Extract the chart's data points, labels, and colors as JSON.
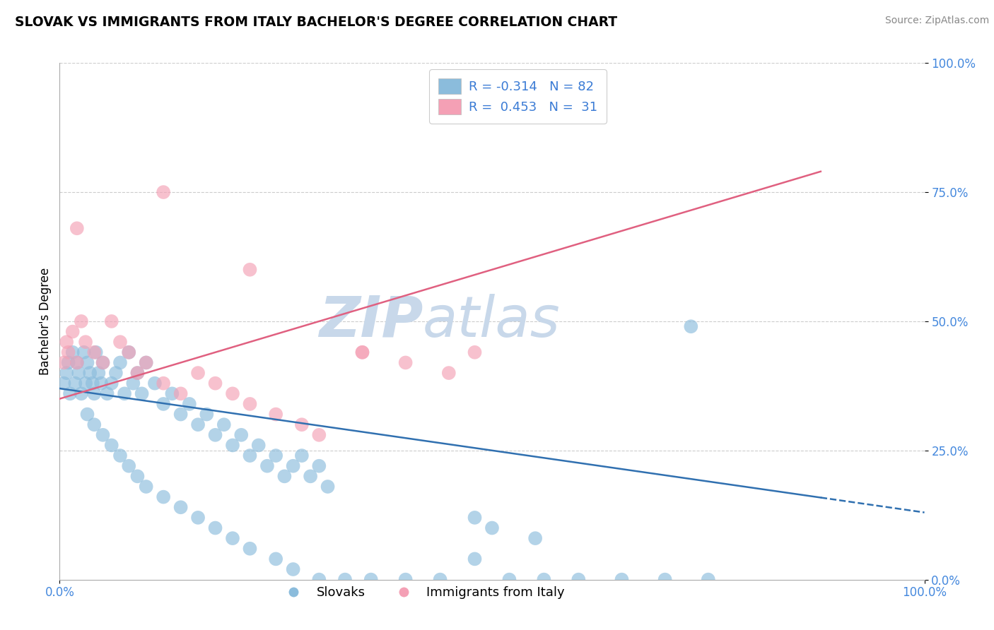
{
  "title": "SLOVAK VS IMMIGRANTS FROM ITALY BACHELOR'S DEGREE CORRELATION CHART",
  "source_text": "Source: ZipAtlas.com",
  "ylabel": "Bachelor's Degree",
  "xlim": [
    0.0,
    1.0
  ],
  "ylim": [
    0.0,
    1.0
  ],
  "x_tick_positions": [
    0.0,
    1.0
  ],
  "x_tick_labels": [
    "0.0%",
    "100.0%"
  ],
  "y_tick_positions": [
    0.0,
    0.25,
    0.5,
    0.75,
    1.0
  ],
  "y_tick_labels": [
    "0.0%",
    "25.0%",
    "50.0%",
    "75.0%",
    "100.0%"
  ],
  "slovak_color": "#8bbcdc",
  "italian_color": "#f4a0b5",
  "slovak_line_color": "#3070b0",
  "italian_line_color": "#e06080",
  "tick_color": "#4488dd",
  "R_slovak": -0.314,
  "N_slovak": 82,
  "R_italian": 0.453,
  "N_italian": 31,
  "legend_text_color": "#3a7bd5",
  "watermark_zip": "ZIP",
  "watermark_atlas": "atlas",
  "watermark_color": "#c8d8ea",
  "grid_color": "#cccccc",
  "background_color": "#ffffff",
  "title_fontsize": 13.5,
  "axis_label_fontsize": 12,
  "tick_fontsize": 12,
  "legend_fontsize": 13,
  "source_fontsize": 10,
  "sk_x": [
    0.005,
    0.008,
    0.01,
    0.012,
    0.015,
    0.018,
    0.02,
    0.022,
    0.025,
    0.028,
    0.03,
    0.032,
    0.035,
    0.038,
    0.04,
    0.042,
    0.045,
    0.048,
    0.05,
    0.055,
    0.06,
    0.065,
    0.07,
    0.075,
    0.08,
    0.085,
    0.09,
    0.095,
    0.1,
    0.11,
    0.12,
    0.13,
    0.14,
    0.15,
    0.16,
    0.17,
    0.18,
    0.19,
    0.2,
    0.21,
    0.22,
    0.23,
    0.24,
    0.25,
    0.26,
    0.27,
    0.28,
    0.29,
    0.3,
    0.31,
    0.032,
    0.04,
    0.05,
    0.06,
    0.07,
    0.08,
    0.09,
    0.1,
    0.12,
    0.14,
    0.16,
    0.18,
    0.2,
    0.22,
    0.25,
    0.27,
    0.3,
    0.33,
    0.36,
    0.4,
    0.44,
    0.48,
    0.52,
    0.56,
    0.6,
    0.65,
    0.7,
    0.75,
    0.48,
    0.5,
    0.55,
    0.73
  ],
  "sk_y": [
    0.38,
    0.4,
    0.42,
    0.36,
    0.44,
    0.38,
    0.42,
    0.4,
    0.36,
    0.44,
    0.38,
    0.42,
    0.4,
    0.38,
    0.36,
    0.44,
    0.4,
    0.38,
    0.42,
    0.36,
    0.38,
    0.4,
    0.42,
    0.36,
    0.44,
    0.38,
    0.4,
    0.36,
    0.42,
    0.38,
    0.34,
    0.36,
    0.32,
    0.34,
    0.3,
    0.32,
    0.28,
    0.3,
    0.26,
    0.28,
    0.24,
    0.26,
    0.22,
    0.24,
    0.2,
    0.22,
    0.24,
    0.2,
    0.22,
    0.18,
    0.32,
    0.3,
    0.28,
    0.26,
    0.24,
    0.22,
    0.2,
    0.18,
    0.16,
    0.14,
    0.12,
    0.1,
    0.08,
    0.06,
    0.04,
    0.02,
    0.0,
    0.0,
    0.0,
    0.0,
    0.0,
    0.04,
    0.0,
    0.0,
    0.0,
    0.0,
    0.0,
    0.0,
    0.12,
    0.1,
    0.08,
    0.49
  ],
  "it_x": [
    0.005,
    0.008,
    0.01,
    0.015,
    0.02,
    0.025,
    0.03,
    0.04,
    0.05,
    0.06,
    0.07,
    0.08,
    0.09,
    0.1,
    0.12,
    0.14,
    0.16,
    0.18,
    0.2,
    0.22,
    0.25,
    0.28,
    0.3,
    0.35,
    0.4,
    0.45,
    0.02,
    0.12,
    0.22,
    0.35,
    0.48
  ],
  "it_y": [
    0.42,
    0.46,
    0.44,
    0.48,
    0.42,
    0.5,
    0.46,
    0.44,
    0.42,
    0.5,
    0.46,
    0.44,
    0.4,
    0.42,
    0.38,
    0.36,
    0.4,
    0.38,
    0.36,
    0.34,
    0.32,
    0.3,
    0.28,
    0.44,
    0.42,
    0.4,
    0.68,
    0.75,
    0.6,
    0.44,
    0.44
  ],
  "sk_line_x0": 0.0,
  "sk_line_y0": 0.37,
  "sk_line_x1": 1.0,
  "sk_line_y1": 0.13,
  "it_line_x0": 0.0,
  "it_line_y0": 0.35,
  "it_line_x1": 1.0,
  "it_line_y1": 0.85,
  "it_line_solid_end": 0.88,
  "sk_line_dash_start": 0.88
}
